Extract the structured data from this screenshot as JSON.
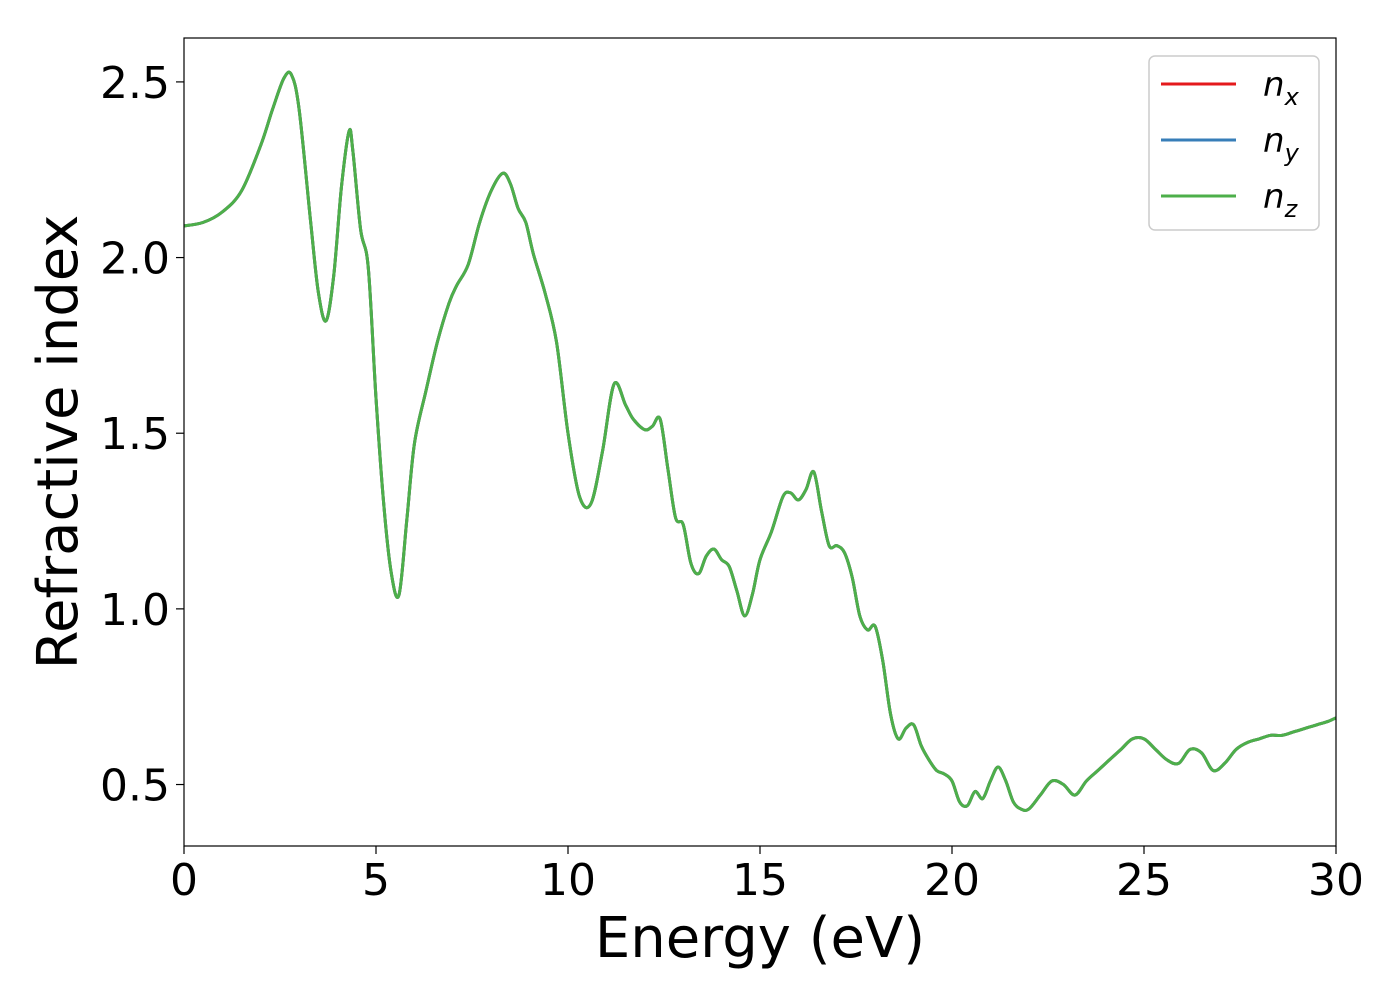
{
  "chart_data": {
    "type": "line",
    "title": "",
    "xlabel": "Energy (eV)",
    "ylabel": "Refractive index",
    "xlim": [
      0,
      30
    ],
    "ylim": [
      0.325,
      2.625
    ],
    "xticks": [
      0,
      5,
      10,
      15,
      20,
      25,
      30
    ],
    "xtick_labels": [
      "0",
      "5",
      "10",
      "15",
      "20",
      "25",
      "30"
    ],
    "yticks": [
      0.5,
      1.0,
      1.5,
      2.0,
      2.5
    ],
    "ytick_labels": [
      "0.5",
      "1.0",
      "1.5",
      "2.0",
      "2.5"
    ],
    "grid": false,
    "legend": {
      "position": "top-right"
    },
    "x": [
      0.0,
      0.5,
      1.0,
      1.5,
      2.0,
      2.3,
      2.6,
      2.8,
      3.0,
      3.3,
      3.5,
      3.7,
      3.9,
      4.1,
      4.3,
      4.4,
      4.6,
      4.8,
      5.0,
      5.2,
      5.4,
      5.6,
      5.8,
      6.0,
      6.3,
      6.6,
      6.9,
      7.1,
      7.4,
      7.7,
      8.0,
      8.3,
      8.5,
      8.7,
      8.9,
      9.1,
      9.4,
      9.7,
      10.0,
      10.3,
      10.6,
      10.9,
      11.2,
      11.5,
      11.7,
      12.0,
      12.2,
      12.4,
      12.6,
      12.8,
      13.0,
      13.2,
      13.4,
      13.6,
      13.8,
      14.0,
      14.2,
      14.4,
      14.6,
      14.8,
      15.0,
      15.3,
      15.6,
      15.8,
      16.0,
      16.2,
      16.4,
      16.6,
      16.8,
      17.0,
      17.2,
      17.4,
      17.6,
      17.8,
      18.0,
      18.2,
      18.4,
      18.6,
      18.8,
      19.0,
      19.2,
      19.4,
      19.6,
      19.8,
      20.0,
      20.2,
      20.4,
      20.6,
      20.8,
      21.0,
      21.2,
      21.4,
      21.6,
      21.8,
      22.0,
      22.3,
      22.6,
      22.9,
      23.2,
      23.5,
      23.8,
      24.1,
      24.4,
      24.7,
      25.0,
      25.3,
      25.6,
      25.9,
      26.2,
      26.5,
      26.8,
      27.1,
      27.4,
      27.7,
      28.0,
      28.3,
      28.6,
      28.9,
      29.2,
      29.5,
      29.8,
      30.0
    ],
    "series": [
      {
        "name": "n",
        "sub": "x",
        "color": "#e41a1c",
        "values": [
          2.09,
          2.1,
          2.13,
          2.19,
          2.32,
          2.42,
          2.51,
          2.52,
          2.42,
          2.1,
          1.9,
          1.82,
          1.95,
          2.2,
          2.36,
          2.3,
          2.08,
          1.97,
          1.6,
          1.3,
          1.1,
          1.04,
          1.25,
          1.47,
          1.62,
          1.76,
          1.87,
          1.92,
          1.98,
          2.1,
          2.19,
          2.24,
          2.21,
          2.14,
          2.1,
          2.01,
          1.9,
          1.76,
          1.5,
          1.32,
          1.3,
          1.45,
          1.64,
          1.58,
          1.54,
          1.51,
          1.52,
          1.54,
          1.4,
          1.26,
          1.24,
          1.13,
          1.1,
          1.15,
          1.17,
          1.14,
          1.12,
          1.05,
          0.98,
          1.04,
          1.14,
          1.22,
          1.32,
          1.33,
          1.31,
          1.34,
          1.39,
          1.28,
          1.18,
          1.18,
          1.16,
          1.09,
          0.98,
          0.94,
          0.95,
          0.85,
          0.7,
          0.63,
          0.66,
          0.67,
          0.61,
          0.57,
          0.54,
          0.53,
          0.51,
          0.45,
          0.44,
          0.48,
          0.46,
          0.51,
          0.55,
          0.51,
          0.45,
          0.43,
          0.43,
          0.47,
          0.51,
          0.5,
          0.47,
          0.51,
          0.54,
          0.57,
          0.6,
          0.63,
          0.63,
          0.6,
          0.57,
          0.56,
          0.6,
          0.59,
          0.54,
          0.56,
          0.6,
          0.62,
          0.63,
          0.64,
          0.64,
          0.65,
          0.66,
          0.67,
          0.68,
          0.69
        ]
      },
      {
        "name": "n",
        "sub": "y",
        "color": "#377eb8",
        "values": [
          2.09,
          2.1,
          2.13,
          2.19,
          2.32,
          2.42,
          2.51,
          2.52,
          2.42,
          2.1,
          1.9,
          1.82,
          1.95,
          2.2,
          2.36,
          2.3,
          2.08,
          1.97,
          1.6,
          1.3,
          1.1,
          1.04,
          1.25,
          1.47,
          1.62,
          1.76,
          1.87,
          1.92,
          1.98,
          2.1,
          2.19,
          2.24,
          2.21,
          2.14,
          2.1,
          2.01,
          1.9,
          1.76,
          1.5,
          1.32,
          1.3,
          1.45,
          1.64,
          1.58,
          1.54,
          1.51,
          1.52,
          1.54,
          1.4,
          1.26,
          1.24,
          1.13,
          1.1,
          1.15,
          1.17,
          1.14,
          1.12,
          1.05,
          0.98,
          1.04,
          1.14,
          1.22,
          1.32,
          1.33,
          1.31,
          1.34,
          1.39,
          1.28,
          1.18,
          1.18,
          1.16,
          1.09,
          0.98,
          0.94,
          0.95,
          0.85,
          0.7,
          0.63,
          0.66,
          0.67,
          0.61,
          0.57,
          0.54,
          0.53,
          0.51,
          0.45,
          0.44,
          0.48,
          0.46,
          0.51,
          0.55,
          0.51,
          0.45,
          0.43,
          0.43,
          0.47,
          0.51,
          0.5,
          0.47,
          0.51,
          0.54,
          0.57,
          0.6,
          0.63,
          0.63,
          0.6,
          0.57,
          0.56,
          0.6,
          0.59,
          0.54,
          0.56,
          0.6,
          0.62,
          0.63,
          0.64,
          0.64,
          0.65,
          0.66,
          0.67,
          0.68,
          0.69
        ]
      },
      {
        "name": "n",
        "sub": "z",
        "color": "#4daf4a",
        "values": [
          2.09,
          2.1,
          2.13,
          2.19,
          2.32,
          2.42,
          2.51,
          2.52,
          2.42,
          2.1,
          1.9,
          1.82,
          1.95,
          2.2,
          2.36,
          2.3,
          2.08,
          1.97,
          1.6,
          1.3,
          1.1,
          1.04,
          1.25,
          1.47,
          1.62,
          1.76,
          1.87,
          1.92,
          1.98,
          2.1,
          2.19,
          2.24,
          2.21,
          2.14,
          2.1,
          2.01,
          1.9,
          1.76,
          1.5,
          1.32,
          1.3,
          1.45,
          1.64,
          1.58,
          1.54,
          1.51,
          1.52,
          1.54,
          1.4,
          1.26,
          1.24,
          1.13,
          1.1,
          1.15,
          1.17,
          1.14,
          1.12,
          1.05,
          0.98,
          1.04,
          1.14,
          1.22,
          1.32,
          1.33,
          1.31,
          1.34,
          1.39,
          1.28,
          1.18,
          1.18,
          1.16,
          1.09,
          0.98,
          0.94,
          0.95,
          0.85,
          0.7,
          0.63,
          0.66,
          0.67,
          0.61,
          0.57,
          0.54,
          0.53,
          0.51,
          0.45,
          0.44,
          0.48,
          0.46,
          0.51,
          0.55,
          0.51,
          0.45,
          0.43,
          0.43,
          0.47,
          0.51,
          0.5,
          0.47,
          0.51,
          0.54,
          0.57,
          0.6,
          0.63,
          0.63,
          0.6,
          0.57,
          0.56,
          0.6,
          0.59,
          0.54,
          0.56,
          0.6,
          0.62,
          0.63,
          0.64,
          0.64,
          0.65,
          0.66,
          0.67,
          0.68,
          0.69
        ]
      }
    ]
  }
}
